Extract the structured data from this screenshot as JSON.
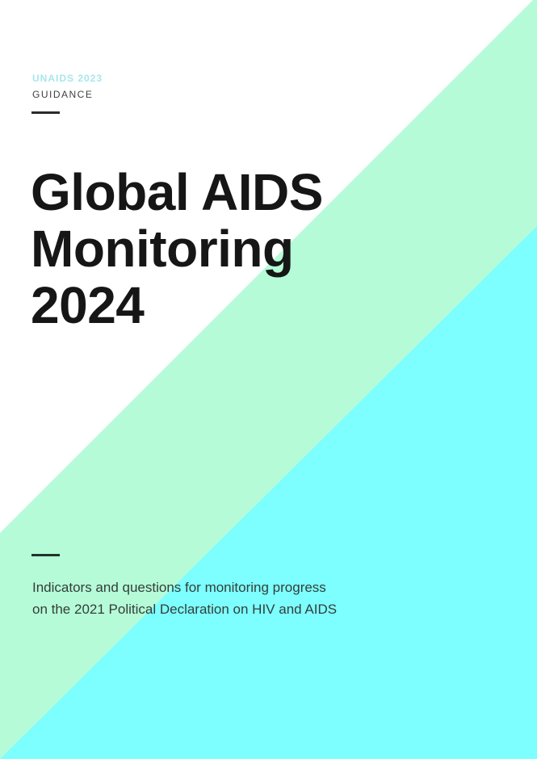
{
  "page": {
    "eyebrow": "UNAIDS 2023",
    "category": "GUIDANCE",
    "title": {
      "lines": [
        "Global AIDS",
        "Monitoring",
        "2024"
      ]
    },
    "subtitle": {
      "lines": [
        "Indicators and questions for monitoring progress",
        "on the 2021 Political Declaration on HIV and AIDS"
      ]
    }
  },
  "colors": {
    "mint": "#b6fbd8",
    "cyan": "#7dfeff",
    "eyebrow": "#a6e7ec",
    "category-text": "#3f3f3f",
    "title-text": "#161616",
    "subtitle-text": "#333e39",
    "dash": "#2b2b2b",
    "dash-dark-green": "#1f352c"
  }
}
